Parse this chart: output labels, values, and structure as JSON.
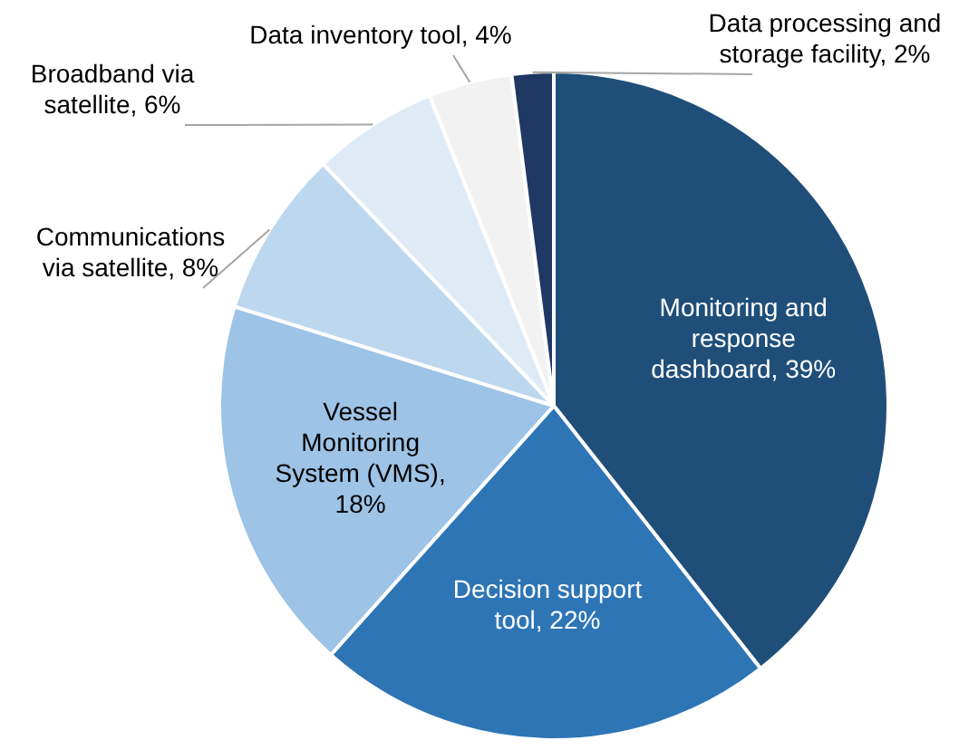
{
  "chart_data": {
    "type": "pie",
    "categories": [
      "Monitoring and response dashboard, 39%",
      "Decision support tool, 22%",
      "Vessel Monitoring System (VMS), 18%",
      "Communications via satellite, 8%",
      "Broadband via satellite, 6%",
      "Data inventory tool, 4%",
      "Data processing and storage facility, 2%"
    ],
    "values": [
      39,
      22,
      18,
      8,
      6,
      4,
      2
    ],
    "colors": [
      "#1f4e79",
      "#2e75b6",
      "#9dc3e6",
      "#bdd7ee",
      "#deebf7",
      "#f2f2f2",
      "#1f3864"
    ],
    "legend": false
  }
}
